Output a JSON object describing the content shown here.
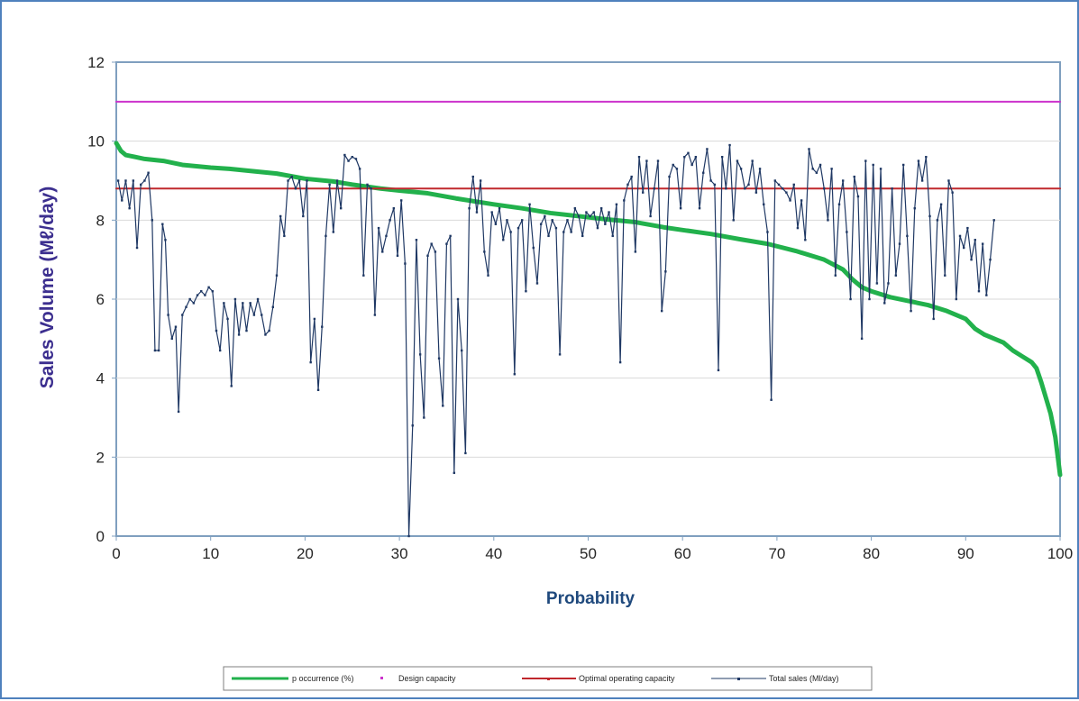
{
  "chart_data": {
    "type": "line",
    "title": "",
    "xlabel": "Probability",
    "ylabel": "Sales Volume (Mℓ/day)",
    "xlim": [
      0,
      100
    ],
    "ylim": [
      0,
      12
    ],
    "x_ticks": [
      "0",
      "10",
      "20",
      "30",
      "40",
      "50",
      "60",
      "70",
      "80",
      "90",
      "100"
    ],
    "y_ticks": [
      "0",
      "2",
      "4",
      "6",
      "8",
      "10",
      "12"
    ],
    "grid": true,
    "legend_position": "bottom",
    "series": [
      {
        "name": "p occurrence (%)",
        "color": "#22b14c",
        "points": [
          [
            0,
            9.95
          ],
          [
            0.5,
            9.75
          ],
          [
            1,
            9.65
          ],
          [
            2,
            9.6
          ],
          [
            3,
            9.55
          ],
          [
            5,
            9.5
          ],
          [
            7,
            9.4
          ],
          [
            10,
            9.33
          ],
          [
            12,
            9.3
          ],
          [
            14,
            9.25
          ],
          [
            17,
            9.18
          ],
          [
            20,
            9.05
          ],
          [
            23,
            8.98
          ],
          [
            25,
            8.9
          ],
          [
            28,
            8.8
          ],
          [
            30,
            8.75
          ],
          [
            33,
            8.68
          ],
          [
            36,
            8.55
          ],
          [
            40,
            8.4
          ],
          [
            43,
            8.3
          ],
          [
            46,
            8.18
          ],
          [
            49,
            8.1
          ],
          [
            52,
            8.02
          ],
          [
            55,
            7.95
          ],
          [
            58,
            7.82
          ],
          [
            60,
            7.75
          ],
          [
            63,
            7.65
          ],
          [
            66,
            7.52
          ],
          [
            69,
            7.4
          ],
          [
            72,
            7.22
          ],
          [
            75,
            7.0
          ],
          [
            77,
            6.75
          ],
          [
            78,
            6.5
          ],
          [
            79,
            6.3
          ],
          [
            80,
            6.2
          ],
          [
            82,
            6.05
          ],
          [
            84,
            5.95
          ],
          [
            86,
            5.85
          ],
          [
            88,
            5.7
          ],
          [
            90,
            5.5
          ],
          [
            91,
            5.25
          ],
          [
            92,
            5.1
          ],
          [
            93,
            5.0
          ],
          [
            94,
            4.9
          ],
          [
            95,
            4.7
          ],
          [
            96,
            4.55
          ],
          [
            97,
            4.4
          ],
          [
            97.5,
            4.25
          ],
          [
            98,
            3.9
          ],
          [
            98.5,
            3.5
          ],
          [
            99,
            3.1
          ],
          [
            99.5,
            2.5
          ],
          [
            100,
            1.55
          ]
        ]
      },
      {
        "name": "Design capacity",
        "color": "#cc33cc",
        "points": [
          [
            0,
            11
          ],
          [
            100,
            11
          ]
        ]
      },
      {
        "name": "Optimal operating capacity",
        "color": "#c0282d",
        "points": [
          [
            0,
            8.8
          ],
          [
            100,
            8.8
          ]
        ]
      },
      {
        "name": "Total sales (Ml/day)",
        "color": "#1f3864",
        "points": [
          [
            0.2,
            9.0
          ],
          [
            0.6,
            8.5
          ],
          [
            1.0,
            9.0
          ],
          [
            1.4,
            8.3
          ],
          [
            1.8,
            9.0
          ],
          [
            2.2,
            7.3
          ],
          [
            2.6,
            8.9
          ],
          [
            3.0,
            9.0
          ],
          [
            3.4,
            9.2
          ],
          [
            3.8,
            8.0
          ],
          [
            4.1,
            4.7
          ],
          [
            4.5,
            4.7
          ],
          [
            4.9,
            7.9
          ],
          [
            5.2,
            7.5
          ],
          [
            5.5,
            5.6
          ],
          [
            5.9,
            5.0
          ],
          [
            6.3,
            5.3
          ],
          [
            6.6,
            3.15
          ],
          [
            7.0,
            5.6
          ],
          [
            7.4,
            5.8
          ],
          [
            7.8,
            6.0
          ],
          [
            8.2,
            5.9
          ],
          [
            8.6,
            6.1
          ],
          [
            9.0,
            6.2
          ],
          [
            9.4,
            6.1
          ],
          [
            9.8,
            6.3
          ],
          [
            10.2,
            6.2
          ],
          [
            10.6,
            5.2
          ],
          [
            11.0,
            4.7
          ],
          [
            11.4,
            5.9
          ],
          [
            11.8,
            5.5
          ],
          [
            12.2,
            3.8
          ],
          [
            12.6,
            6.0
          ],
          [
            13.0,
            5.1
          ],
          [
            13.4,
            5.9
          ],
          [
            13.8,
            5.2
          ],
          [
            14.2,
            5.9
          ],
          [
            14.6,
            5.6
          ],
          [
            15.0,
            6.0
          ],
          [
            15.4,
            5.6
          ],
          [
            15.8,
            5.1
          ],
          [
            16.2,
            5.2
          ],
          [
            16.6,
            5.8
          ],
          [
            17.0,
            6.6
          ],
          [
            17.4,
            8.1
          ],
          [
            17.8,
            7.6
          ],
          [
            18.2,
            9.0
          ],
          [
            18.6,
            9.1
          ],
          [
            19.0,
            8.8
          ],
          [
            19.4,
            9.0
          ],
          [
            19.8,
            8.1
          ],
          [
            20.2,
            9.0
          ],
          [
            20.6,
            4.4
          ],
          [
            21.0,
            5.5
          ],
          [
            21.4,
            3.7
          ],
          [
            21.8,
            5.3
          ],
          [
            22.2,
            7.6
          ],
          [
            22.6,
            8.9
          ],
          [
            23.0,
            7.7
          ],
          [
            23.4,
            9.0
          ],
          [
            23.8,
            8.3
          ],
          [
            24.2,
            9.65
          ],
          [
            24.6,
            9.5
          ],
          [
            25.0,
            9.6
          ],
          [
            25.4,
            9.55
          ],
          [
            25.8,
            9.3
          ],
          [
            26.2,
            6.6
          ],
          [
            26.6,
            8.9
          ],
          [
            27.0,
            8.8
          ],
          [
            27.4,
            5.6
          ],
          [
            27.8,
            7.8
          ],
          [
            28.2,
            7.2
          ],
          [
            28.6,
            7.6
          ],
          [
            29.0,
            8.0
          ],
          [
            29.4,
            8.3
          ],
          [
            29.8,
            7.1
          ],
          [
            30.2,
            8.5
          ],
          [
            30.6,
            6.9
          ],
          [
            31.0,
            0.0
          ],
          [
            31.4,
            2.8
          ],
          [
            31.8,
            7.5
          ],
          [
            32.2,
            4.6
          ],
          [
            32.6,
            3.0
          ],
          [
            33.0,
            7.1
          ],
          [
            33.4,
            7.4
          ],
          [
            33.8,
            7.2
          ],
          [
            34.2,
            4.5
          ],
          [
            34.6,
            3.3
          ],
          [
            35.0,
            7.4
          ],
          [
            35.4,
            7.6
          ],
          [
            35.8,
            1.6
          ],
          [
            36.2,
            6.0
          ],
          [
            36.6,
            4.7
          ],
          [
            37.0,
            2.1
          ],
          [
            37.4,
            8.3
          ],
          [
            37.8,
            9.1
          ],
          [
            38.2,
            8.2
          ],
          [
            38.6,
            9.0
          ],
          [
            39.0,
            7.2
          ],
          [
            39.4,
            6.6
          ],
          [
            39.8,
            8.2
          ],
          [
            40.2,
            7.9
          ],
          [
            40.6,
            8.3
          ],
          [
            41.0,
            7.5
          ],
          [
            41.4,
            8.0
          ],
          [
            41.8,
            7.7
          ],
          [
            42.2,
            4.1
          ],
          [
            42.6,
            7.8
          ],
          [
            43.0,
            8.0
          ],
          [
            43.4,
            6.2
          ],
          [
            43.8,
            8.4
          ],
          [
            44.2,
            7.3
          ],
          [
            44.6,
            6.4
          ],
          [
            45.0,
            7.9
          ],
          [
            45.4,
            8.1
          ],
          [
            45.8,
            7.6
          ],
          [
            46.2,
            8.0
          ],
          [
            46.6,
            7.8
          ],
          [
            47.0,
            4.6
          ],
          [
            47.4,
            7.7
          ],
          [
            47.8,
            8.0
          ],
          [
            48.2,
            7.7
          ],
          [
            48.6,
            8.3
          ],
          [
            49.0,
            8.1
          ],
          [
            49.4,
            7.6
          ],
          [
            49.8,
            8.2
          ],
          [
            50.2,
            8.1
          ],
          [
            50.6,
            8.2
          ],
          [
            51.0,
            7.8
          ],
          [
            51.4,
            8.3
          ],
          [
            51.8,
            7.9
          ],
          [
            52.2,
            8.2
          ],
          [
            52.6,
            7.6
          ],
          [
            53.0,
            8.4
          ],
          [
            53.4,
            4.4
          ],
          [
            53.8,
            8.5
          ],
          [
            54.2,
            8.9
          ],
          [
            54.6,
            9.1
          ],
          [
            55.0,
            7.2
          ],
          [
            55.4,
            9.6
          ],
          [
            55.8,
            8.7
          ],
          [
            56.2,
            9.5
          ],
          [
            56.6,
            8.1
          ],
          [
            57.0,
            8.8
          ],
          [
            57.4,
            9.5
          ],
          [
            57.8,
            5.7
          ],
          [
            58.2,
            6.7
          ],
          [
            58.6,
            9.1
          ],
          [
            59.0,
            9.4
          ],
          [
            59.4,
            9.3
          ],
          [
            59.8,
            8.3
          ],
          [
            60.2,
            9.6
          ],
          [
            60.6,
            9.7
          ],
          [
            61.0,
            9.4
          ],
          [
            61.4,
            9.6
          ],
          [
            61.8,
            8.3
          ],
          [
            62.2,
            9.2
          ],
          [
            62.6,
            9.8
          ],
          [
            63.0,
            9.0
          ],
          [
            63.4,
            8.9
          ],
          [
            63.8,
            4.2
          ],
          [
            64.2,
            9.6
          ],
          [
            64.6,
            8.8
          ],
          [
            65.0,
            9.9
          ],
          [
            65.4,
            8.0
          ],
          [
            65.8,
            9.5
          ],
          [
            66.2,
            9.3
          ],
          [
            66.6,
            8.8
          ],
          [
            67.0,
            8.9
          ],
          [
            67.4,
            9.5
          ],
          [
            67.8,
            8.7
          ],
          [
            68.2,
            9.3
          ],
          [
            68.6,
            8.4
          ],
          [
            69.0,
            7.7
          ],
          [
            69.4,
            3.45
          ],
          [
            69.8,
            9.0
          ],
          [
            70.2,
            8.9
          ],
          [
            70.6,
            8.8
          ],
          [
            71.0,
            8.7
          ],
          [
            71.4,
            8.5
          ],
          [
            71.8,
            8.9
          ],
          [
            72.2,
            7.8
          ],
          [
            72.6,
            8.5
          ],
          [
            73.0,
            7.5
          ],
          [
            73.4,
            9.8
          ],
          [
            73.8,
            9.3
          ],
          [
            74.2,
            9.2
          ],
          [
            74.6,
            9.4
          ],
          [
            75.0,
            8.8
          ],
          [
            75.4,
            8.0
          ],
          [
            75.8,
            9.3
          ],
          [
            76.2,
            6.6
          ],
          [
            76.6,
            8.4
          ],
          [
            77.0,
            9.0
          ],
          [
            77.4,
            7.7
          ],
          [
            77.8,
            6.0
          ],
          [
            78.2,
            9.1
          ],
          [
            78.6,
            8.6
          ],
          [
            79.0,
            5.0
          ],
          [
            79.4,
            9.5
          ],
          [
            79.8,
            6.0
          ],
          [
            80.2,
            9.4
          ],
          [
            80.6,
            6.4
          ],
          [
            81.0,
            9.3
          ],
          [
            81.4,
            5.9
          ],
          [
            81.8,
            6.4
          ],
          [
            82.2,
            8.8
          ],
          [
            82.6,
            6.6
          ],
          [
            83.0,
            7.4
          ],
          [
            83.4,
            9.4
          ],
          [
            83.8,
            7.6
          ],
          [
            84.2,
            5.7
          ],
          [
            84.6,
            8.3
          ],
          [
            85.0,
            9.5
          ],
          [
            85.4,
            9.0
          ],
          [
            85.8,
            9.6
          ],
          [
            86.2,
            8.1
          ],
          [
            86.6,
            5.5
          ],
          [
            87.0,
            8.0
          ],
          [
            87.4,
            8.4
          ],
          [
            87.8,
            6.6
          ],
          [
            88.2,
            9.0
          ],
          [
            88.6,
            8.7
          ],
          [
            89.0,
            6.0
          ],
          [
            89.4,
            7.6
          ],
          [
            89.8,
            7.3
          ],
          [
            90.2,
            7.8
          ],
          [
            90.6,
            7.0
          ],
          [
            91.0,
            7.5
          ],
          [
            91.4,
            6.2
          ],
          [
            91.8,
            7.4
          ],
          [
            92.2,
            6.1
          ],
          [
            92.6,
            7.0
          ],
          [
            93.0,
            8.0
          ]
        ]
      }
    ]
  },
  "legend": {
    "items": [
      {
        "label": "p occurrence (%)",
        "color": "#22b14c"
      },
      {
        "label": "Design capacity",
        "color": "#cc33cc"
      },
      {
        "label": "Optimal operating capacity",
        "color": "#c0282d"
      },
      {
        "label": "Total sales (Ml/day)",
        "color": "#1f3864"
      }
    ]
  },
  "colors": {
    "frame": "#4f81bd",
    "plot_border": "#7f9fbf",
    "grid": "#d9d9d9",
    "axis_title": "#1f497d",
    "ylabel_color": "#3c2f8f"
  }
}
